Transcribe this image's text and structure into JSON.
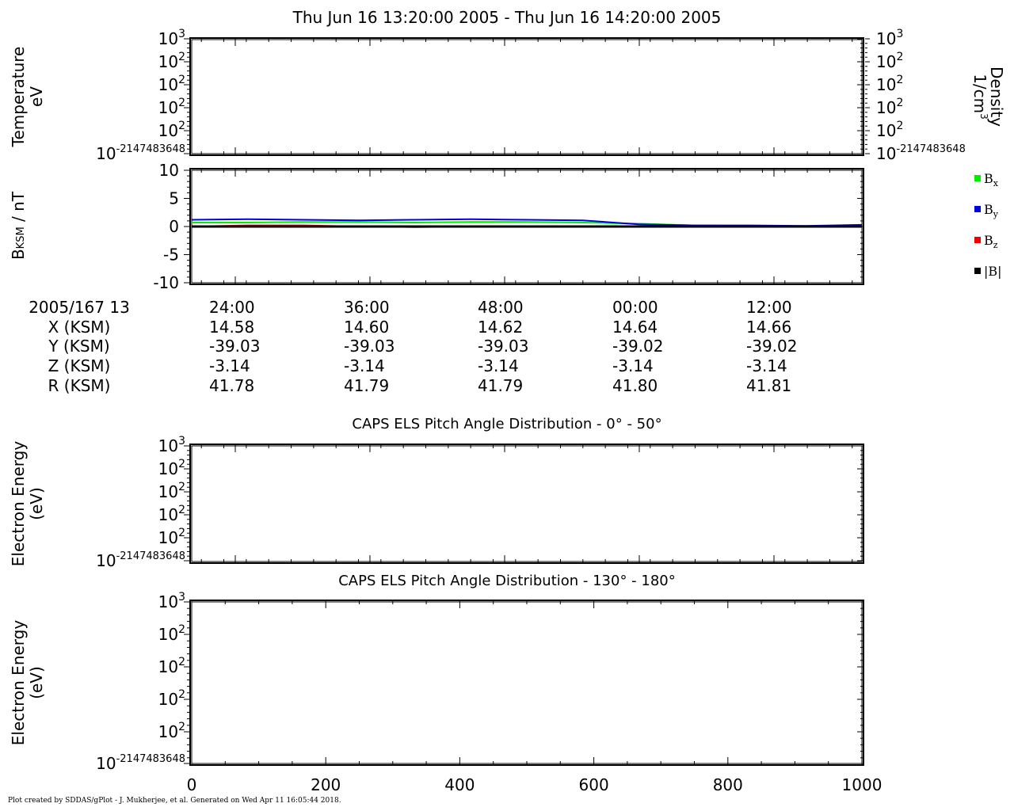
{
  "title": "Thu Jun 16 13:20:00 2005 - Thu Jun 16 14:20:00 2005",
  "footer": "Plot created by SDDAS/gPlot - J. Mukherjee, et al.  Generated on Wed Apr 11 16:05:44 2018.",
  "panel_temperature": {
    "ylabel_line1": "Temperature",
    "ylabel_line2": "eV",
    "right_label_line1": "Density",
    "right_label_line2": "1/cm",
    "right_label_sup": "3",
    "tick_base": "10",
    "tick_exponents": [
      "3",
      "2",
      "2",
      "2",
      "2",
      "-2147483648"
    ]
  },
  "panel_mag": {
    "ylabel_main": "B",
    "ylabel_sub": "KSM",
    "ylabel_unit": " / nT",
    "yticks": [
      "10",
      "5",
      "0",
      "-5",
      "-10"
    ]
  },
  "ephemeris": {
    "header_label": "2005/167 13",
    "row_labels": [
      "X (KSM)",
      "Y (KSM)",
      "Z (KSM)",
      "R (KSM)"
    ],
    "columns": [
      {
        "time": "24:00",
        "values": [
          "14.58",
          "-39.03",
          "-3.14",
          "41.78"
        ]
      },
      {
        "time": "36:00",
        "values": [
          "14.60",
          "-39.03",
          "-3.14",
          "41.79"
        ]
      },
      {
        "time": "48:00",
        "values": [
          "14.62",
          "-39.03",
          "-3.14",
          "41.79"
        ]
      },
      {
        "time": "00:00",
        "values": [
          "14.64",
          "-39.02",
          "-3.14",
          "41.80"
        ]
      },
      {
        "time": "12:00",
        "values": [
          "14.66",
          "-39.02",
          "-3.14",
          "41.81"
        ]
      }
    ]
  },
  "panel_els1": {
    "title": "CAPS ELS Pitch Angle Distribution - 0° - 50°",
    "ylabel_line1": "Electron Energy",
    "ylabel_line2": "(eV)",
    "tick_base": "10",
    "tick_exponents": [
      "3",
      "2",
      "2",
      "2",
      "2",
      "-2147483648"
    ]
  },
  "panel_els2": {
    "title": "CAPS ELS Pitch Angle Distribution - 130° - 180°",
    "ylabel_line1": "Electron Energy",
    "ylabel_line2": "(eV)",
    "tick_base": "10",
    "tick_exponents": [
      "3",
      "2",
      "2",
      "2",
      "2",
      "-2147483648"
    ],
    "xticks": [
      "0",
      "200",
      "400",
      "600",
      "800",
      "1000"
    ]
  },
  "legend": [
    {
      "main": "B",
      "sub": "x",
      "color": "#00ee00"
    },
    {
      "main": "B",
      "sub": "y",
      "color": "#0000dd"
    },
    {
      "main": "B",
      "sub": "z",
      "color": "#ee0000"
    },
    {
      "main": "|B|",
      "sub": "",
      "color": "#000000"
    }
  ],
  "chart_data": [
    {
      "type": "line",
      "title": "",
      "ylabel": "Temperature eV",
      "y2label": "Density 1/cm3",
      "series": [],
      "y_ticks": [
        "10^3",
        "10^2",
        "10^2",
        "10^2",
        "10^2",
        "10^-2147483648"
      ]
    },
    {
      "type": "line",
      "ylabel": "BKSM / nT",
      "ylim": [
        -10,
        10
      ],
      "x_minutes": [
        0,
        5,
        10,
        15,
        20,
        25,
        30,
        35,
        40,
        45,
        50,
        55,
        60
      ],
      "series": [
        {
          "name": "Bx",
          "color": "#00ee00",
          "values": [
            0.7,
            0.7,
            0.8,
            0.8,
            0.7,
            0.8,
            0.8,
            0.7,
            0.5,
            0.2,
            0.1,
            0.1,
            0.1
          ]
        },
        {
          "name": "By",
          "color": "#0000dd",
          "values": [
            1.2,
            1.3,
            1.2,
            1.1,
            1.2,
            1.3,
            1.2,
            1.1,
            0.4,
            0.2,
            0.2,
            0.1,
            0.3
          ]
        },
        {
          "name": "Bz",
          "color": "#ee0000",
          "values": [
            0.0,
            0.2,
            0.2,
            0.0,
            -0.1,
            0.0,
            0.0,
            0.0,
            0.0,
            0.0,
            0.0,
            0.0,
            0.0
          ]
        },
        {
          "name": "|B|",
          "color": "#000000",
          "values": [
            0,
            0,
            0,
            0,
            0,
            0,
            0,
            0,
            0,
            0,
            0,
            0,
            0
          ]
        }
      ]
    },
    {
      "type": "heatmap",
      "title": "CAPS ELS Pitch Angle Distribution - 0° - 50°",
      "ylabel": "Electron Energy (eV)",
      "series": []
    },
    {
      "type": "heatmap",
      "title": "CAPS ELS Pitch Angle Distribution - 130° - 180°",
      "ylabel": "Electron Energy (eV)",
      "x_ticks": [
        0,
        200,
        400,
        600,
        800,
        1000
      ],
      "xlim": [
        0,
        1000
      ],
      "series": []
    }
  ]
}
